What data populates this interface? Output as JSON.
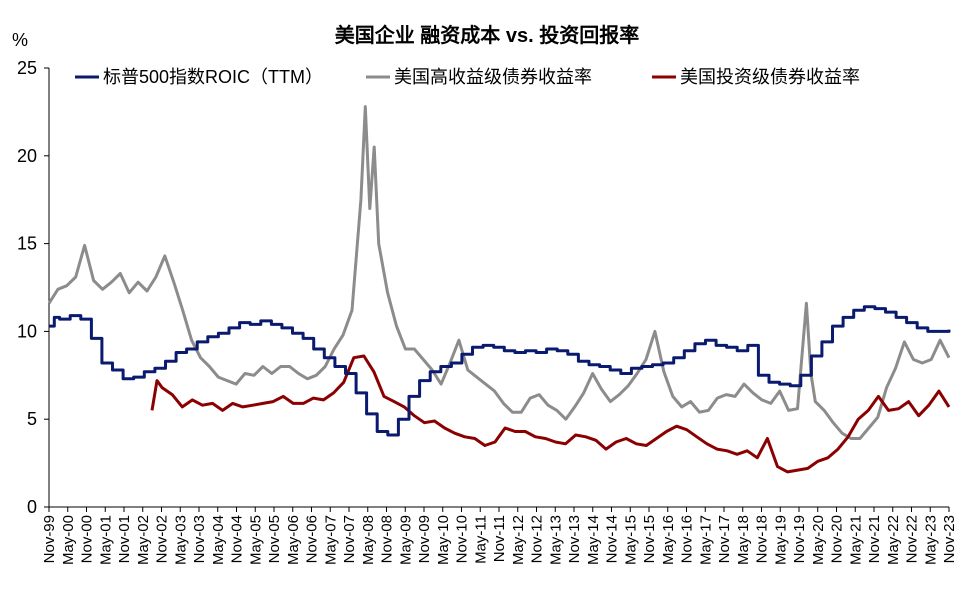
{
  "chart_data": {
    "type": "line",
    "title": "美国企业 融资成本 vs. 投资回报率",
    "ylabel": "%",
    "xlabel": "",
    "ylim": [
      0,
      25
    ],
    "y_ticks": [
      0,
      5,
      10,
      15,
      20,
      25
    ],
    "grid": false,
    "legend_position": "top",
    "x_tick_labels": [
      "Nov-99",
      "May-00",
      "Nov-00",
      "May-01",
      "Nov-01",
      "May-02",
      "Nov-02",
      "May-03",
      "Nov-03",
      "May-04",
      "Nov-04",
      "May-05",
      "Nov-05",
      "May-06",
      "Nov-06",
      "May-07",
      "Nov-07",
      "May-08",
      "Nov-08",
      "May-09",
      "Nov-09",
      "May-10",
      "Nov-10",
      "May-11",
      "Nov-11",
      "May-12",
      "Nov-12",
      "May-13",
      "Nov-13",
      "May-14",
      "Nov-14",
      "May-15",
      "Nov-15",
      "May-16",
      "Nov-16",
      "May-17",
      "Nov-17",
      "May-18",
      "Nov-18",
      "May-19",
      "Nov-19",
      "May-20",
      "Nov-20",
      "May-21",
      "Nov-21",
      "May-22",
      "Nov-22",
      "May-23",
      "Nov-23"
    ],
    "series": [
      {
        "name": "标普500指数ROIC（TTM）",
        "color": "#0a1a6e",
        "style": "step",
        "points": [
          [
            0,
            10.3
          ],
          [
            0.5,
            10.8
          ],
          [
            1,
            10.7
          ],
          [
            2,
            10.9
          ],
          [
            3,
            10.7
          ],
          [
            4,
            9.6
          ],
          [
            5,
            8.2
          ],
          [
            6,
            7.8
          ],
          [
            7,
            7.3
          ],
          [
            8,
            7.4
          ],
          [
            9,
            7.7
          ],
          [
            10,
            7.9
          ],
          [
            11,
            8.3
          ],
          [
            12,
            8.8
          ],
          [
            13,
            9.0
          ],
          [
            14,
            9.4
          ],
          [
            15,
            9.7
          ],
          [
            16,
            9.9
          ],
          [
            17,
            10.2
          ],
          [
            18,
            10.5
          ],
          [
            19,
            10.4
          ],
          [
            20,
            10.6
          ],
          [
            21,
            10.4
          ],
          [
            22,
            10.2
          ],
          [
            23,
            9.9
          ],
          [
            24,
            9.6
          ],
          [
            25,
            9.0
          ],
          [
            26,
            8.5
          ],
          [
            27,
            8.0
          ],
          [
            28,
            7.6
          ],
          [
            29,
            6.5
          ],
          [
            30,
            5.3
          ],
          [
            31,
            4.3
          ],
          [
            32,
            4.1
          ],
          [
            33,
            5.0
          ],
          [
            34,
            6.3
          ],
          [
            35,
            7.2
          ],
          [
            36,
            7.7
          ],
          [
            37,
            8.0
          ],
          [
            38,
            8.2
          ],
          [
            39,
            8.7
          ],
          [
            40,
            9.1
          ],
          [
            41,
            9.2
          ],
          [
            42,
            9.1
          ],
          [
            43,
            8.9
          ],
          [
            44,
            8.8
          ],
          [
            45,
            8.9
          ],
          [
            46,
            8.8
          ],
          [
            47,
            9.0
          ],
          [
            48,
            8.9
          ],
          [
            49,
            8.7
          ],
          [
            50,
            8.3
          ],
          [
            51,
            8.1
          ],
          [
            52,
            8.0
          ],
          [
            53,
            7.8
          ],
          [
            54,
            7.6
          ],
          [
            55,
            7.9
          ],
          [
            56,
            8.0
          ],
          [
            57,
            8.1
          ],
          [
            58,
            8.2
          ],
          [
            59,
            8.5
          ],
          [
            60,
            8.9
          ],
          [
            61,
            9.3
          ],
          [
            62,
            9.5
          ],
          [
            63,
            9.2
          ],
          [
            64,
            9.1
          ],
          [
            65,
            8.9
          ],
          [
            66,
            9.2
          ],
          [
            67,
            7.5
          ],
          [
            68,
            7.1
          ],
          [
            69,
            7.0
          ],
          [
            70,
            6.9
          ],
          [
            71,
            7.5
          ],
          [
            72,
            8.6
          ],
          [
            73,
            9.4
          ],
          [
            74,
            10.3
          ],
          [
            75,
            10.8
          ],
          [
            76,
            11.2
          ],
          [
            77,
            11.4
          ],
          [
            78,
            11.3
          ],
          [
            79,
            11.1
          ],
          [
            80,
            10.8
          ],
          [
            81,
            10.5
          ],
          [
            82,
            10.2
          ],
          [
            83,
            10.0
          ],
          [
            84,
            10.0
          ],
          [
            85,
            10.1
          ]
        ]
      },
      {
        "name": "美国高收益级债券收益率",
        "color": "#8c8c8c",
        "style": "line",
        "points": [
          [
            0,
            11.6
          ],
          [
            1,
            12.4
          ],
          [
            2,
            12.6
          ],
          [
            3,
            13.1
          ],
          [
            4,
            14.9
          ],
          [
            5,
            12.9
          ],
          [
            6,
            12.4
          ],
          [
            7,
            12.8
          ],
          [
            8,
            13.3
          ],
          [
            9,
            12.2
          ],
          [
            10,
            12.8
          ],
          [
            11,
            12.3
          ],
          [
            12,
            13.1
          ],
          [
            13,
            14.3
          ],
          [
            14,
            12.8
          ],
          [
            15,
            11.2
          ],
          [
            16,
            9.5
          ],
          [
            17,
            8.5
          ],
          [
            18,
            8.0
          ],
          [
            19,
            7.4
          ],
          [
            20,
            7.2
          ],
          [
            21,
            7.0
          ],
          [
            22,
            7.6
          ],
          [
            23,
            7.5
          ],
          [
            24,
            8.0
          ],
          [
            25,
            7.6
          ],
          [
            26,
            8.0
          ],
          [
            27,
            8.0
          ],
          [
            28,
            7.6
          ],
          [
            29,
            7.3
          ],
          [
            30,
            7.5
          ],
          [
            31,
            8.0
          ],
          [
            32,
            9.0
          ],
          [
            33,
            9.8
          ],
          [
            34,
            11.2
          ],
          [
            35,
            17.5
          ],
          [
            35.5,
            22.8
          ],
          [
            36,
            17.0
          ],
          [
            36.5,
            20.5
          ],
          [
            37,
            15.0
          ],
          [
            38,
            12.2
          ],
          [
            39,
            10.3
          ],
          [
            40,
            9.0
          ],
          [
            41,
            9.0
          ],
          [
            42,
            8.4
          ],
          [
            43,
            7.8
          ],
          [
            44,
            7.0
          ],
          [
            45,
            8.2
          ],
          [
            46,
            9.5
          ],
          [
            47,
            7.8
          ],
          [
            48,
            7.4
          ],
          [
            49,
            7.0
          ],
          [
            50,
            6.6
          ],
          [
            51,
            5.9
          ],
          [
            52,
            5.4
          ],
          [
            53,
            5.4
          ],
          [
            54,
            6.2
          ],
          [
            55,
            6.4
          ],
          [
            56,
            5.8
          ],
          [
            57,
            5.5
          ],
          [
            58,
            5.0
          ],
          [
            59,
            5.7
          ],
          [
            60,
            6.5
          ],
          [
            61,
            7.6
          ],
          [
            62,
            6.7
          ],
          [
            63,
            6.0
          ],
          [
            64,
            6.4
          ],
          [
            65,
            6.9
          ],
          [
            66,
            7.6
          ],
          [
            67,
            8.4
          ],
          [
            68,
            10.0
          ],
          [
            69,
            7.7
          ],
          [
            70,
            6.3
          ],
          [
            71,
            5.7
          ],
          [
            72,
            6.0
          ],
          [
            73,
            5.4
          ],
          [
            74,
            5.5
          ],
          [
            75,
            6.2
          ],
          [
            76,
            6.4
          ],
          [
            77,
            6.3
          ],
          [
            78,
            7.0
          ],
          [
            79,
            6.5
          ],
          [
            80,
            6.1
          ],
          [
            81,
            5.9
          ],
          [
            82,
            6.6
          ],
          [
            83,
            5.5
          ],
          [
            84,
            5.6
          ],
          [
            85,
            11.6
          ],
          [
            85.5,
            7.6
          ],
          [
            86,
            6.0
          ],
          [
            87,
            5.5
          ],
          [
            88,
            4.8
          ],
          [
            89,
            4.2
          ],
          [
            90,
            3.9
          ],
          [
            91,
            3.9
          ],
          [
            92,
            4.5
          ],
          [
            93,
            5.1
          ],
          [
            94,
            6.8
          ],
          [
            95,
            7.9
          ],
          [
            96,
            9.4
          ],
          [
            97,
            8.4
          ],
          [
            98,
            8.2
          ],
          [
            99,
            8.4
          ],
          [
            100,
            9.5
          ],
          [
            101,
            8.5
          ]
        ]
      },
      {
        "name": "美国投资级债券收益率",
        "color": "#8b0000",
        "style": "line",
        "points": [
          [
            0,
            5.5
          ],
          [
            0.5,
            7.2
          ],
          [
            1,
            6.8
          ],
          [
            2,
            6.4
          ],
          [
            3,
            5.7
          ],
          [
            4,
            6.1
          ],
          [
            5,
            5.8
          ],
          [
            6,
            5.9
          ],
          [
            7,
            5.5
          ],
          [
            8,
            5.9
          ],
          [
            9,
            5.7
          ],
          [
            10,
            5.8
          ],
          [
            11,
            5.9
          ],
          [
            12,
            6.0
          ],
          [
            13,
            6.3
          ],
          [
            14,
            5.9
          ],
          [
            15,
            5.9
          ],
          [
            16,
            6.2
          ],
          [
            17,
            6.1
          ],
          [
            18,
            6.5
          ],
          [
            19,
            7.1
          ],
          [
            20,
            8.5
          ],
          [
            21,
            8.6
          ],
          [
            22,
            7.7
          ],
          [
            23,
            6.3
          ],
          [
            24,
            6.0
          ],
          [
            25,
            5.7
          ],
          [
            26,
            5.2
          ],
          [
            27,
            4.8
          ],
          [
            28,
            4.9
          ],
          [
            29,
            4.5
          ],
          [
            30,
            4.2
          ],
          [
            31,
            4.0
          ],
          [
            32,
            3.9
          ],
          [
            33,
            3.5
          ],
          [
            34,
            3.7
          ],
          [
            35,
            4.5
          ],
          [
            36,
            4.3
          ],
          [
            37,
            4.3
          ],
          [
            38,
            4.0
          ],
          [
            39,
            3.9
          ],
          [
            40,
            3.7
          ],
          [
            41,
            3.6
          ],
          [
            42,
            4.1
          ],
          [
            43,
            4.0
          ],
          [
            44,
            3.8
          ],
          [
            45,
            3.3
          ],
          [
            46,
            3.7
          ],
          [
            47,
            3.9
          ],
          [
            48,
            3.6
          ],
          [
            49,
            3.5
          ],
          [
            50,
            3.9
          ],
          [
            51,
            4.3
          ],
          [
            52,
            4.6
          ],
          [
            53,
            4.4
          ],
          [
            54,
            4.0
          ],
          [
            55,
            3.6
          ],
          [
            56,
            3.3
          ],
          [
            57,
            3.2
          ],
          [
            58,
            3.0
          ],
          [
            59,
            3.2
          ],
          [
            60,
            2.8
          ],
          [
            61,
            3.9
          ],
          [
            62,
            2.3
          ],
          [
            63,
            2.0
          ],
          [
            64,
            2.1
          ],
          [
            65,
            2.2
          ],
          [
            66,
            2.6
          ],
          [
            67,
            2.8
          ],
          [
            68,
            3.3
          ],
          [
            69,
            4.0
          ],
          [
            70,
            5.0
          ],
          [
            71,
            5.5
          ],
          [
            72,
            6.3
          ],
          [
            73,
            5.5
          ],
          [
            74,
            5.6
          ],
          [
            75,
            6.0
          ],
          [
            76,
            5.2
          ],
          [
            77,
            5.8
          ],
          [
            78,
            6.6
          ],
          [
            79,
            5.7
          ]
        ]
      }
    ]
  }
}
